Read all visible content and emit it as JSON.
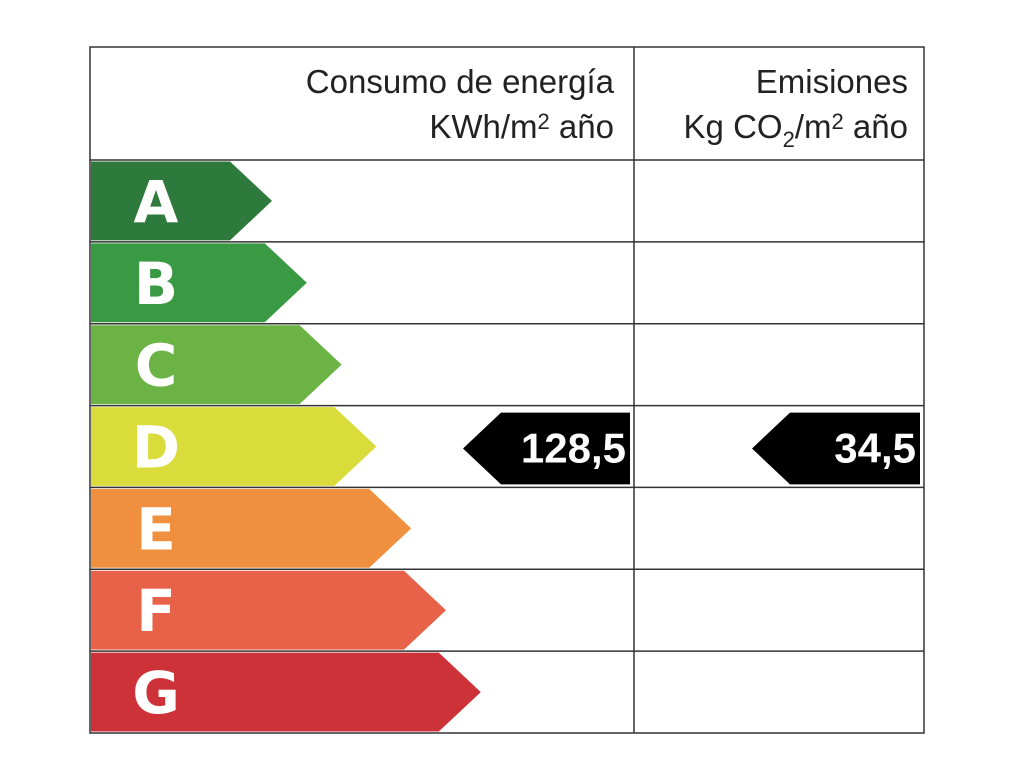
{
  "header": {
    "energy": {
      "title": "Consumo de energía",
      "unit": [
        "KWh/m",
        "2",
        " año"
      ]
    },
    "emissions": {
      "title": "Emisiones",
      "unit": [
        "Kg CO",
        "2",
        "/m",
        "2",
        " año"
      ]
    }
  },
  "ratings": [
    {
      "letter": "A",
      "color": "#2e7a3c"
    },
    {
      "letter": "B",
      "color": "#3a9a44"
    },
    {
      "letter": "C",
      "color": "#6ab344"
    },
    {
      "letter": "D",
      "color": "#d9dc3a"
    },
    {
      "letter": "E",
      "color": "#f0903e"
    },
    {
      "letter": "F",
      "color": "#e8624a"
    },
    {
      "letter": "G",
      "color": "#cc3237"
    }
  ],
  "indicators": {
    "energy": "128,5",
    "emissions": "34,5"
  }
}
